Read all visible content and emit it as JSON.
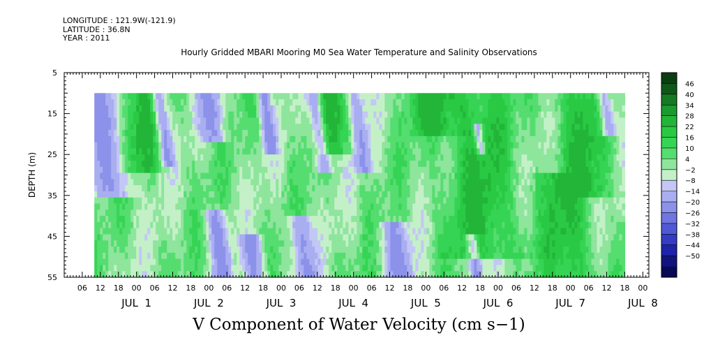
{
  "meta": {
    "longitude": "LONGITUDE : 121.9W(-121.9)",
    "latitude": "LATITUDE : 36.8N",
    "year": "YEAR : 2011"
  },
  "chart_data": {
    "type": "heatmap",
    "title": "Hourly Gridded MBARI Mooring M0 Sea Water Temperature and Salinity Observations",
    "xlabel": "V Component of Water Velocity (cm s−1)",
    "ylabel": "DEPTH (m)",
    "y_axis": {
      "range": [
        5,
        55
      ],
      "inverted": true,
      "tick_labels": [
        "5",
        "15",
        "25",
        "35",
        "45",
        "55"
      ],
      "tick_values": [
        5,
        15,
        25,
        35,
        45,
        55
      ]
    },
    "x_axis": {
      "range_hours": [
        "2011-06-30 00:00",
        "2011-07-08 02:00"
      ],
      "hour_tick_labels": [
        "06",
        "12",
        "18",
        "00",
        "06",
        "12",
        "18",
        "00",
        "06",
        "12",
        "18",
        "00",
        "06",
        "12",
        "18",
        "00",
        "06",
        "12",
        "18",
        "00",
        "06",
        "12",
        "18",
        "00",
        "06",
        "12",
        "18",
        "00",
        "06",
        "12",
        "18",
        "00"
      ],
      "day_labels": [
        "JUL  1",
        "JUL  2",
        "JUL  3",
        "JUL  4",
        "JUL  5",
        "JUL  6",
        "JUL  7",
        "JUL  8"
      ]
    },
    "data_extent": {
      "time_start": "2011-06-30 10:00",
      "time_end": "2011-07-07 18:00",
      "depth_top": 10,
      "depth_bottom": 55
    },
    "colorbar": {
      "levels": [
        "46",
        "40",
        "34",
        "28",
        "22",
        "16",
        "10",
        "4",
        "−2",
        "−8",
        "−14",
        "−20",
        "−26",
        "−32",
        "−38",
        "−44",
        "−50"
      ],
      "colors_top_to_bottom": [
        "#0b3d12",
        "#10561a",
        "#157a24",
        "#1b9a2e",
        "#22b538",
        "#2ac944",
        "#36d454",
        "#55dd70",
        "#8ee59c",
        "#c4f0c8",
        "#c3c7f5",
        "#a9aef0",
        "#8c92ea",
        "#6f76e2",
        "#5158d6",
        "#343bc4",
        "#1f23a8",
        "#12147e",
        "#080a55"
      ]
    },
    "bands": [
      {
        "name": "neg",
        "t": 0.5,
        "w": 0.35,
        "d0": 10,
        "d1": 35
      },
      {
        "name": "neg",
        "t": 1.3,
        "w": 0.12,
        "d0": 10,
        "d1": 28
      },
      {
        "name": "neg",
        "t": 1.85,
        "w": 0.18,
        "d0": 38,
        "d1": 55
      },
      {
        "name": "neg",
        "t": 2.0,
        "w": 0.22,
        "d0": 10,
        "d1": 22
      },
      {
        "name": "neg",
        "t": 2.75,
        "w": 0.12,
        "d0": 10,
        "d1": 25
      },
      {
        "name": "neg",
        "t": 3.45,
        "w": 0.14,
        "d0": 10,
        "d1": 30
      },
      {
        "name": "neg",
        "t": 4.0,
        "w": 0.16,
        "d0": 10,
        "d1": 30
      },
      {
        "name": "neg",
        "t": 4.3,
        "w": 0.25,
        "d0": 42,
        "d1": 55
      },
      {
        "name": "neg",
        "t": 3.0,
        "w": 0.2,
        "d0": 40,
        "d1": 55
      },
      {
        "name": "neg",
        "t": 5.35,
        "w": 0.12,
        "d0": 45,
        "d1": 55
      },
      {
        "name": "neg",
        "t": 5.65,
        "w": 0.08,
        "d0": 18,
        "d1": 25
      },
      {
        "name": "neg",
        "t": 7.45,
        "w": 0.15,
        "d0": 10,
        "d1": 20
      },
      {
        "name": "neg",
        "t": 7.65,
        "w": 0.12,
        "d0": 38,
        "d1": 55
      },
      {
        "name": "neg",
        "t": 2.3,
        "w": 0.2,
        "d0": 45,
        "d1": 55
      }
    ],
    "strong_pos": [
      {
        "t": 0.95,
        "w": 0.3,
        "d0": 10,
        "d1": 30
      },
      {
        "t": 3.7,
        "w": 0.3,
        "d0": 10,
        "d1": 25
      },
      {
        "t": 5.6,
        "w": 0.5,
        "d0": 10,
        "d1": 50
      },
      {
        "t": 6.75,
        "w": 0.35,
        "d0": 30,
        "d1": 55
      },
      {
        "t": 5.05,
        "w": 0.3,
        "d0": 10,
        "d1": 20
      },
      {
        "t": 7.1,
        "w": 0.35,
        "d0": 10,
        "d1": 35
      }
    ]
  }
}
